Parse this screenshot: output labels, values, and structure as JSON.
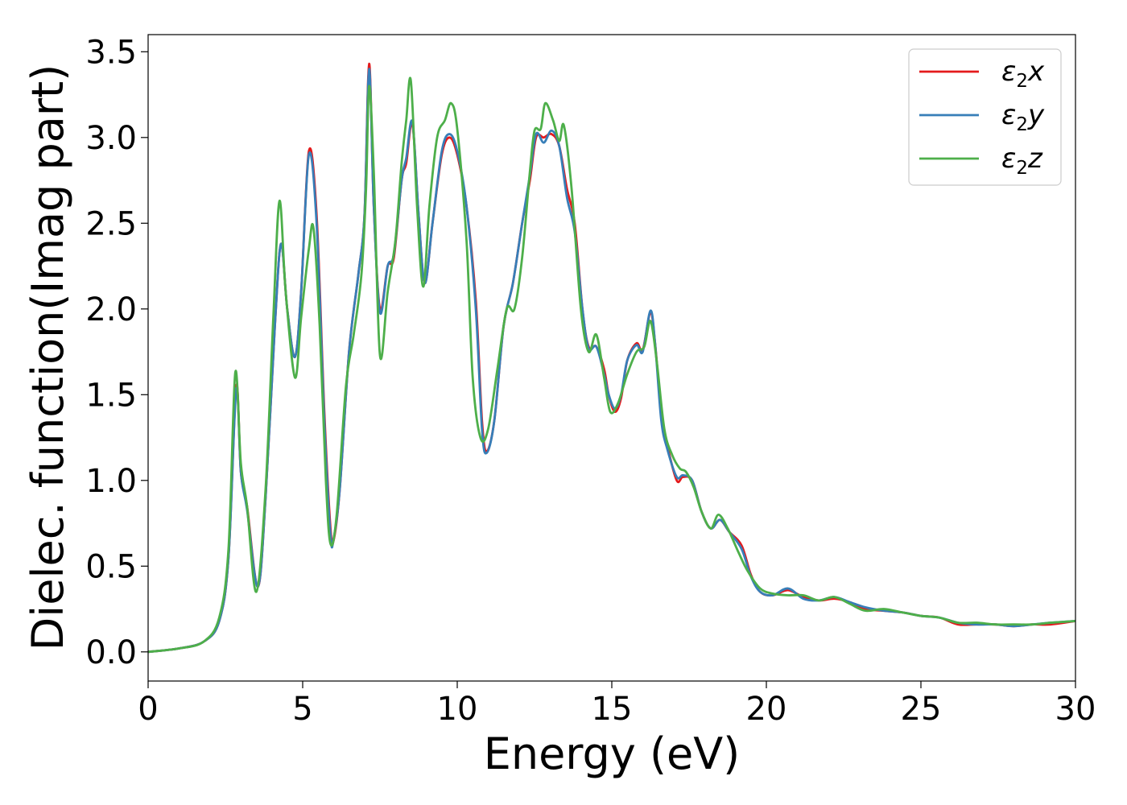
{
  "chart_data": {
    "type": "line",
    "title": "",
    "xlabel": "Energy (eV)",
    "ylabel": "Dielec. function(Imag part)",
    "xlim": [
      0,
      30
    ],
    "ylim": [
      -0.17,
      3.6
    ],
    "x_ticks": [
      "0",
      "5",
      "10",
      "15",
      "20",
      "25",
      "30"
    ],
    "y_ticks": [
      "0.0",
      "0.5",
      "1.0",
      "1.5",
      "2.0",
      "2.5",
      "3.0",
      "3.5"
    ],
    "grid": false,
    "legend_position": "top-right",
    "series": [
      {
        "name": "ε2x",
        "label_main": "ε",
        "label_sub": "2",
        "label_tail": "x",
        "color": "#e41a1c",
        "points": [
          [
            0,
            0
          ],
          [
            1,
            0.02
          ],
          [
            1.8,
            0.06
          ],
          [
            2.3,
            0.18
          ],
          [
            2.6,
            0.55
          ],
          [
            2.85,
            1.55
          ],
          [
            3.0,
            1.05
          ],
          [
            3.2,
            0.85
          ],
          [
            3.55,
            0.38
          ],
          [
            3.8,
            0.9
          ],
          [
            4.1,
            1.9
          ],
          [
            4.3,
            2.38
          ],
          [
            4.5,
            2.0
          ],
          [
            4.75,
            1.72
          ],
          [
            4.95,
            2.1
          ],
          [
            5.2,
            2.92
          ],
          [
            5.45,
            2.55
          ],
          [
            5.7,
            1.4
          ],
          [
            5.9,
            0.72
          ],
          [
            6.0,
            0.65
          ],
          [
            6.2,
            0.95
          ],
          [
            6.5,
            1.75
          ],
          [
            6.8,
            2.2
          ],
          [
            7.0,
            2.55
          ],
          [
            7.15,
            3.43
          ],
          [
            7.3,
            2.6
          ],
          [
            7.5,
            2.0
          ],
          [
            7.75,
            2.25
          ],
          [
            7.95,
            2.3
          ],
          [
            8.2,
            2.75
          ],
          [
            8.35,
            2.85
          ],
          [
            8.55,
            3.08
          ],
          [
            8.75,
            2.55
          ],
          [
            8.95,
            2.15
          ],
          [
            9.2,
            2.5
          ],
          [
            9.5,
            2.9
          ],
          [
            9.75,
            3.0
          ],
          [
            10.0,
            2.9
          ],
          [
            10.3,
            2.6
          ],
          [
            10.6,
            2.05
          ],
          [
            10.8,
            1.35
          ],
          [
            10.95,
            1.17
          ],
          [
            11.2,
            1.35
          ],
          [
            11.5,
            1.9
          ],
          [
            11.8,
            2.15
          ],
          [
            12.1,
            2.5
          ],
          [
            12.35,
            2.75
          ],
          [
            12.55,
            3.0
          ],
          [
            12.8,
            3.0
          ],
          [
            13.05,
            3.02
          ],
          [
            13.3,
            2.95
          ],
          [
            13.55,
            2.7
          ],
          [
            13.8,
            2.5
          ],
          [
            14.05,
            2.0
          ],
          [
            14.25,
            1.78
          ],
          [
            14.5,
            1.78
          ],
          [
            14.75,
            1.65
          ],
          [
            14.9,
            1.5
          ],
          [
            15.1,
            1.4
          ],
          [
            15.3,
            1.48
          ],
          [
            15.5,
            1.7
          ],
          [
            15.8,
            1.8
          ],
          [
            16.0,
            1.76
          ],
          [
            16.25,
            1.98
          ],
          [
            16.4,
            1.8
          ],
          [
            16.6,
            1.4
          ],
          [
            16.8,
            1.2
          ],
          [
            17.1,
            1.0
          ],
          [
            17.3,
            1.02
          ],
          [
            17.6,
            1.0
          ],
          [
            17.9,
            0.82
          ],
          [
            18.2,
            0.72
          ],
          [
            18.5,
            0.77
          ],
          [
            18.8,
            0.7
          ],
          [
            19.2,
            0.62
          ],
          [
            19.5,
            0.45
          ],
          [
            19.8,
            0.35
          ],
          [
            20.2,
            0.33
          ],
          [
            20.7,
            0.36
          ],
          [
            21.2,
            0.32
          ],
          [
            21.7,
            0.3
          ],
          [
            22.2,
            0.31
          ],
          [
            22.7,
            0.29
          ],
          [
            23.2,
            0.25
          ],
          [
            23.8,
            0.24
          ],
          [
            24.4,
            0.23
          ],
          [
            25.0,
            0.21
          ],
          [
            25.6,
            0.2
          ],
          [
            26.2,
            0.16
          ],
          [
            26.8,
            0.16
          ],
          [
            27.4,
            0.16
          ],
          [
            28.0,
            0.15
          ],
          [
            28.6,
            0.16
          ],
          [
            29.2,
            0.16
          ],
          [
            30,
            0.18
          ]
        ]
      },
      {
        "name": "ε2y",
        "label_main": "ε",
        "label_sub": "2",
        "label_tail": "y",
        "color": "#377eb8",
        "points": [
          [
            0,
            0
          ],
          [
            1,
            0.02
          ],
          [
            1.8,
            0.06
          ],
          [
            2.3,
            0.18
          ],
          [
            2.6,
            0.55
          ],
          [
            2.85,
            1.53
          ],
          [
            3.0,
            1.05
          ],
          [
            3.2,
            0.83
          ],
          [
            3.55,
            0.38
          ],
          [
            3.8,
            0.9
          ],
          [
            4.1,
            1.9
          ],
          [
            4.3,
            2.38
          ],
          [
            4.5,
            2.0
          ],
          [
            4.75,
            1.72
          ],
          [
            4.95,
            2.1
          ],
          [
            5.2,
            2.9
          ],
          [
            5.45,
            2.5
          ],
          [
            5.7,
            1.35
          ],
          [
            5.9,
            0.68
          ],
          [
            6.0,
            0.66
          ],
          [
            6.2,
            0.95
          ],
          [
            6.5,
            1.75
          ],
          [
            6.8,
            2.2
          ],
          [
            7.0,
            2.55
          ],
          [
            7.15,
            3.4
          ],
          [
            7.3,
            2.6
          ],
          [
            7.5,
            1.98
          ],
          [
            7.75,
            2.25
          ],
          [
            7.95,
            2.32
          ],
          [
            8.2,
            2.75
          ],
          [
            8.35,
            2.88
          ],
          [
            8.55,
            3.09
          ],
          [
            8.75,
            2.55
          ],
          [
            8.95,
            2.15
          ],
          [
            9.2,
            2.5
          ],
          [
            9.5,
            2.92
          ],
          [
            9.75,
            3.02
          ],
          [
            10.0,
            2.92
          ],
          [
            10.3,
            2.6
          ],
          [
            10.6,
            2.0
          ],
          [
            10.8,
            1.3
          ],
          [
            10.95,
            1.16
          ],
          [
            11.2,
            1.35
          ],
          [
            11.5,
            1.9
          ],
          [
            11.8,
            2.15
          ],
          [
            12.1,
            2.5
          ],
          [
            12.35,
            2.78
          ],
          [
            12.55,
            3.02
          ],
          [
            12.8,
            2.97
          ],
          [
            13.05,
            3.04
          ],
          [
            13.3,
            2.95
          ],
          [
            13.55,
            2.65
          ],
          [
            13.8,
            2.45
          ],
          [
            14.05,
            2.0
          ],
          [
            14.25,
            1.77
          ],
          [
            14.5,
            1.78
          ],
          [
            14.75,
            1.62
          ],
          [
            14.9,
            1.5
          ],
          [
            15.1,
            1.42
          ],
          [
            15.3,
            1.5
          ],
          [
            15.5,
            1.7
          ],
          [
            15.8,
            1.79
          ],
          [
            16.0,
            1.75
          ],
          [
            16.25,
            1.99
          ],
          [
            16.4,
            1.8
          ],
          [
            16.6,
            1.35
          ],
          [
            16.8,
            1.18
          ],
          [
            17.1,
            1.02
          ],
          [
            17.3,
            1.03
          ],
          [
            17.6,
            1.0
          ],
          [
            17.9,
            0.82
          ],
          [
            18.2,
            0.72
          ],
          [
            18.5,
            0.77
          ],
          [
            18.8,
            0.7
          ],
          [
            19.2,
            0.6
          ],
          [
            19.5,
            0.44
          ],
          [
            19.8,
            0.35
          ],
          [
            20.2,
            0.33
          ],
          [
            20.7,
            0.37
          ],
          [
            21.2,
            0.31
          ],
          [
            21.7,
            0.3
          ],
          [
            22.2,
            0.32
          ],
          [
            22.7,
            0.29
          ],
          [
            23.2,
            0.26
          ],
          [
            23.8,
            0.24
          ],
          [
            24.4,
            0.23
          ],
          [
            25.0,
            0.21
          ],
          [
            25.6,
            0.2
          ],
          [
            26.2,
            0.17
          ],
          [
            26.8,
            0.16
          ],
          [
            27.4,
            0.16
          ],
          [
            28.0,
            0.15
          ],
          [
            28.6,
            0.16
          ],
          [
            29.2,
            0.17
          ],
          [
            30,
            0.18
          ]
        ]
      },
      {
        "name": "ε2z",
        "label_main": "ε",
        "label_sub": "2",
        "label_tail": "z",
        "color": "#4daf4a",
        "points": [
          [
            0,
            0
          ],
          [
            1,
            0.02
          ],
          [
            1.8,
            0.06
          ],
          [
            2.3,
            0.2
          ],
          [
            2.6,
            0.6
          ],
          [
            2.82,
            1.63
          ],
          [
            3.0,
            1.1
          ],
          [
            3.2,
            0.85
          ],
          [
            3.5,
            0.35
          ],
          [
            3.8,
            0.95
          ],
          [
            4.05,
            1.95
          ],
          [
            4.25,
            2.63
          ],
          [
            4.45,
            2.1
          ],
          [
            4.75,
            1.6
          ],
          [
            4.95,
            1.95
          ],
          [
            5.2,
            2.35
          ],
          [
            5.35,
            2.47
          ],
          [
            5.55,
            1.9
          ],
          [
            5.75,
            1.0
          ],
          [
            5.9,
            0.63
          ],
          [
            6.1,
            0.8
          ],
          [
            6.4,
            1.55
          ],
          [
            6.65,
            1.85
          ],
          [
            6.9,
            2.2
          ],
          [
            7.05,
            2.7
          ],
          [
            7.15,
            3.3
          ],
          [
            7.3,
            2.8
          ],
          [
            7.5,
            1.73
          ],
          [
            7.75,
            2.1
          ],
          [
            8.0,
            2.4
          ],
          [
            8.2,
            2.85
          ],
          [
            8.35,
            3.1
          ],
          [
            8.5,
            3.33
          ],
          [
            8.7,
            2.6
          ],
          [
            8.9,
            2.13
          ],
          [
            9.1,
            2.6
          ],
          [
            9.35,
            3.0
          ],
          [
            9.6,
            3.1
          ],
          [
            9.8,
            3.2
          ],
          [
            10.0,
            3.05
          ],
          [
            10.3,
            2.4
          ],
          [
            10.5,
            1.6
          ],
          [
            10.75,
            1.25
          ],
          [
            11.0,
            1.3
          ],
          [
            11.3,
            1.65
          ],
          [
            11.6,
            2.0
          ],
          [
            11.85,
            2.0
          ],
          [
            12.1,
            2.3
          ],
          [
            12.35,
            2.8
          ],
          [
            12.5,
            3.04
          ],
          [
            12.7,
            3.05
          ],
          [
            12.85,
            3.2
          ],
          [
            13.1,
            3.1
          ],
          [
            13.3,
            2.98
          ],
          [
            13.45,
            3.07
          ],
          [
            13.7,
            2.7
          ],
          [
            14.0,
            2.0
          ],
          [
            14.25,
            1.75
          ],
          [
            14.5,
            1.85
          ],
          [
            14.75,
            1.6
          ],
          [
            14.95,
            1.4
          ],
          [
            15.2,
            1.45
          ],
          [
            15.5,
            1.62
          ],
          [
            15.8,
            1.75
          ],
          [
            16.05,
            1.78
          ],
          [
            16.25,
            1.93
          ],
          [
            16.45,
            1.7
          ],
          [
            16.7,
            1.3
          ],
          [
            16.95,
            1.15
          ],
          [
            17.2,
            1.07
          ],
          [
            17.4,
            1.05
          ],
          [
            17.65,
            0.96
          ],
          [
            17.9,
            0.82
          ],
          [
            18.2,
            0.72
          ],
          [
            18.45,
            0.8
          ],
          [
            18.75,
            0.72
          ],
          [
            19.1,
            0.58
          ],
          [
            19.4,
            0.47
          ],
          [
            19.8,
            0.37
          ],
          [
            20.2,
            0.34
          ],
          [
            20.7,
            0.33
          ],
          [
            21.2,
            0.33
          ],
          [
            21.7,
            0.3
          ],
          [
            22.2,
            0.32
          ],
          [
            22.7,
            0.28
          ],
          [
            23.2,
            0.24
          ],
          [
            23.8,
            0.25
          ],
          [
            24.4,
            0.23
          ],
          [
            25.0,
            0.21
          ],
          [
            25.6,
            0.2
          ],
          [
            26.2,
            0.17
          ],
          [
            26.8,
            0.17
          ],
          [
            27.4,
            0.16
          ],
          [
            28.0,
            0.16
          ],
          [
            28.6,
            0.16
          ],
          [
            29.2,
            0.17
          ],
          [
            30,
            0.18
          ]
        ]
      }
    ]
  }
}
